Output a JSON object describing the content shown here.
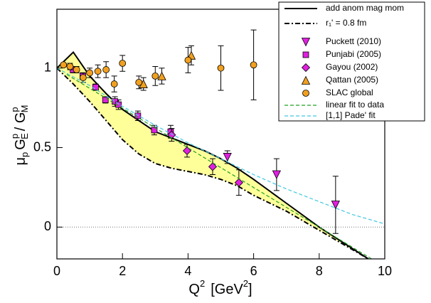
{
  "chart_data": {
    "type": "scatter",
    "xlabel": [
      "Q",
      "2",
      "[GeV",
      "2",
      "]"
    ],
    "ylabel": [
      "μ",
      "p",
      "G",
      "p",
      "E",
      "/ G",
      "p",
      "M"
    ],
    "xlim": [
      0,
      10
    ],
    "ylim": [
      -0.2,
      1.37
    ],
    "xticks": [
      0,
      2,
      4,
      6,
      8,
      10
    ],
    "yticks": [
      0,
      0.5,
      1
    ],
    "zero_line": true,
    "series": [
      {
        "name": "add anom mag mom",
        "kind": "line",
        "color": "#000000",
        "dash": "solid",
        "x": [
          0,
          0.5,
          1,
          1.5,
          2,
          2.5,
          3,
          3.5,
          4,
          4.5,
          5,
          5.5,
          6,
          7,
          8,
          9.5
        ],
        "values": [
          1.0,
          1.1,
          0.95,
          0.84,
          0.74,
          0.67,
          0.6,
          0.56,
          0.52,
          0.48,
          0.43,
          0.37,
          0.3,
          0.15,
          0.0,
          -0.2
        ]
      },
      {
        "name": "r₁' = 0.8 fm",
        "kind": "line",
        "color": "#000000",
        "dash": "dashdot",
        "x": [
          0,
          0.5,
          1,
          1.5,
          2,
          2.5,
          3,
          3.5,
          4,
          4.5,
          5,
          5.5,
          6,
          7,
          8,
          9.5
        ],
        "values": [
          1.0,
          0.9,
          0.79,
          0.67,
          0.55,
          0.46,
          0.4,
          0.37,
          0.35,
          0.33,
          0.3,
          0.26,
          0.2,
          0.1,
          -0.02,
          -0.2
        ]
      },
      {
        "name": "Puckett (2010)",
        "kind": "points",
        "marker": "triangle-down",
        "color": "#e020e0",
        "x": [
          5.2,
          6.7,
          8.5
        ],
        "values": [
          0.44,
          0.33,
          0.14
        ],
        "errors": [
          0.04,
          0.1,
          0.18
        ]
      },
      {
        "name": "Punjabi (2005)",
        "kind": "points",
        "marker": "square",
        "color": "#e020e0",
        "x": [
          0.49,
          0.79,
          1.18,
          1.48,
          1.77,
          1.88,
          2.47,
          2.97,
          3.47
        ],
        "values": [
          0.99,
          0.95,
          0.88,
          0.8,
          0.79,
          0.77,
          0.7,
          0.61,
          0.6
        ],
        "errors": [
          0.02,
          0.02,
          0.02,
          0.02,
          0.03,
          0.03,
          0.03,
          0.03,
          0.04
        ]
      },
      {
        "name": "Gayou (2002)",
        "kind": "points",
        "marker": "diamond",
        "color": "#e020e0",
        "x": [
          3.5,
          3.97,
          4.75,
          5.55
        ],
        "values": [
          0.58,
          0.48,
          0.38,
          0.28
        ],
        "errors": [
          0.04,
          0.04,
          0.05,
          0.08
        ]
      },
      {
        "name": "Qattan (2005)",
        "kind": "points",
        "marker": "triangle-up",
        "color": "#f0a020",
        "x": [
          2.64,
          3.2,
          4.1
        ],
        "values": [
          0.9,
          0.95,
          1.08
        ],
        "errors": [
          0.04,
          0.05,
          0.06
        ]
      },
      {
        "name": "SLAC global",
        "kind": "points",
        "marker": "circle",
        "color": "#f0a020",
        "x": [
          0.2,
          0.4,
          0.6,
          0.8,
          1.0,
          1.25,
          1.5,
          1.75,
          2.0,
          2.5,
          3.0,
          4.0,
          5.0,
          6.0
        ],
        "values": [
          1.02,
          1.01,
          0.99,
          0.94,
          0.97,
          0.98,
          0.99,
          0.9,
          1.03,
          0.91,
          0.95,
          1.05,
          1.0,
          1.02
        ],
        "errors": [
          0.01,
          0.02,
          0.02,
          0.03,
          0.03,
          0.04,
          0.05,
          0.05,
          0.05,
          0.04,
          0.06,
          0.08,
          0.14,
          0.22
        ]
      },
      {
        "name": "linear fit to data",
        "kind": "line",
        "color": "#22a022",
        "dash": "dashed",
        "x": [
          0.3,
          9.6
        ],
        "values": [
          0.96,
          -0.2
        ]
      },
      {
        "name": "[1,1] Pade' fit",
        "kind": "line",
        "color": "#40c8e0",
        "dash": "dashed",
        "x": [
          0,
          1,
          2,
          3,
          4,
          5,
          6,
          7,
          8,
          9,
          10
        ],
        "values": [
          1.0,
          0.89,
          0.76,
          0.64,
          0.53,
          0.43,
          0.33,
          0.24,
          0.16,
          0.08,
          0.02
        ]
      }
    ]
  }
}
